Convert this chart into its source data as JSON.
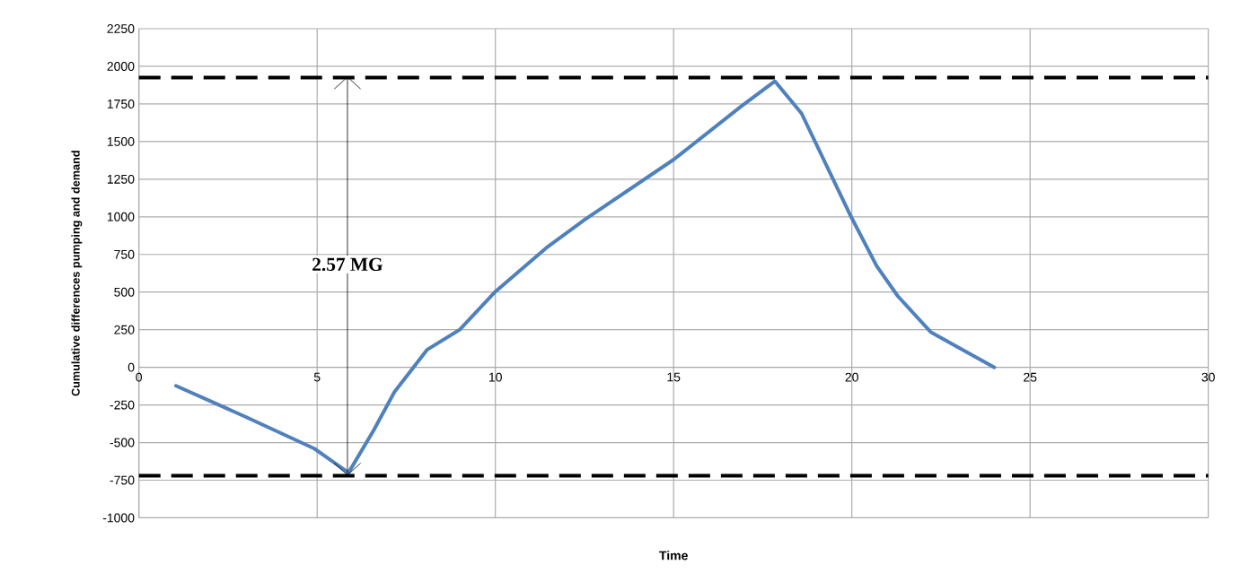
{
  "chart_data": {
    "type": "line",
    "xlabel": "Time",
    "ylabel": "Cumulative differences pumping and demand",
    "x": [
      1.04,
      3,
      4.92,
      5.88,
      6.58,
      7.17,
      8.08,
      9,
      10,
      11.42,
      12.5,
      15,
      16.91,
      17.84,
      18.59,
      19.98,
      20.7,
      21.29,
      22.21,
      23,
      24
    ],
    "series": [
      {
        "color": "#4f81bd",
        "values": [
          -123,
          -330,
          -540,
          -700,
          -421,
          -163,
          116,
          250,
          503,
          792,
          980,
          1380,
          1737,
          1901,
          1687,
          1000,
          672,
          473,
          235,
          130,
          0
        ]
      },
      {
        "type": "line",
        "color": "#000000",
        "x": [
          5.85,
          5.85
        ],
        "values": [
          -720,
          1925
        ]
      }
    ],
    "xlim": [
      0,
      30
    ],
    "ylim": [
      -1000,
      2250
    ],
    "xticks": [
      0,
      5,
      10,
      15,
      20,
      25,
      30
    ],
    "yticks": [
      -1000,
      -750,
      -500,
      -250,
      0,
      250,
      500,
      750,
      1000,
      1250,
      1500,
      1750,
      2000,
      2250
    ],
    "grid": true,
    "ref_lines": [
      {
        "axis": "y",
        "value": 1925,
        "color": "#000000",
        "line_style": "dashed"
      },
      {
        "axis": "y",
        "value": -720,
        "color": "#000000",
        "line_style": "dashed"
      }
    ],
    "annotations": [
      "2.57 MG"
    ]
  }
}
